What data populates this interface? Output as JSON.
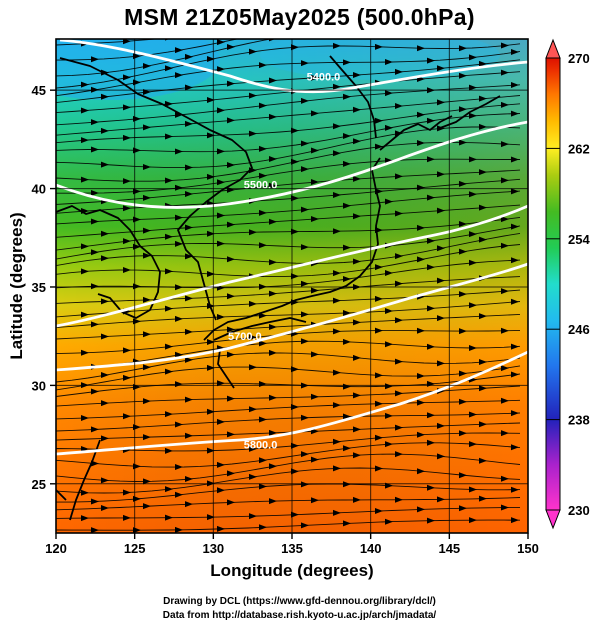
{
  "title": "MSM 21Z05May2025 (500.0hPa)",
  "x_axis": {
    "label": "Longitude (degrees)",
    "range": [
      120,
      150
    ],
    "ticks": [
      "120",
      "125",
      "130",
      "135",
      "140",
      "145",
      "150"
    ]
  },
  "y_axis": {
    "label": "Latitude  (degrees)",
    "range": [
      22.5,
      47.6
    ],
    "ticks": [
      "25",
      "30",
      "35",
      "40",
      "45"
    ]
  },
  "colorbar": {
    "range": [
      230,
      270
    ],
    "ticks": [
      "230",
      "238",
      "246",
      "254",
      "262",
      "270"
    ],
    "colors": [
      "#ff33cc",
      "#cc22cc",
      "#2222bb",
      "#2266ee",
      "#22aaee",
      "#22dddd",
      "#22cc66",
      "#22bb22",
      "#77cc11",
      "#bbdd11",
      "#ffee22",
      "#ffcc00",
      "#ff9900",
      "#ff6600",
      "#ee3300",
      "#dd1100",
      "#ff5555"
    ]
  },
  "contours": [
    {
      "label": "5400.0",
      "lon": 137.0,
      "lat": 45.5
    },
    {
      "label": "5500.0",
      "lon": 133.0,
      "lat": 40.0
    },
    {
      "label": "5700.0",
      "lon": 132.0,
      "lat": 32.3
    },
    {
      "label": "5800.0",
      "lon": 133.0,
      "lat": 26.8
    }
  ],
  "credits": {
    "line1": "Drawing by DCL (https://www.gfd-dennou.org/library/dcl/)",
    "line2": "Data from http://database.rish.kyoto-u.ac.jp/arch/jmadata/"
  }
}
